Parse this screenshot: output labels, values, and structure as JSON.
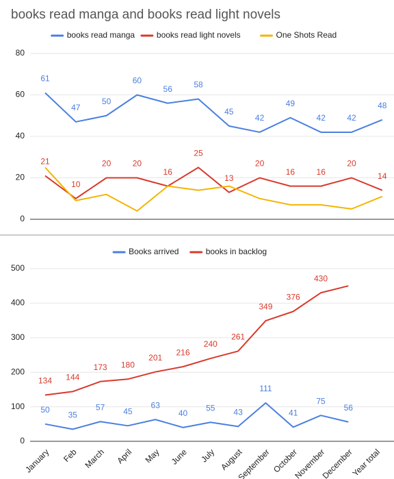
{
  "chart_data": [
    {
      "type": "line",
      "title": "books read manga and books read light novels",
      "categories": [
        null,
        null,
        null,
        null,
        null,
        null,
        null,
        null,
        null,
        null,
        null,
        null
      ],
      "series": [
        {
          "name": "books read manga",
          "color": "#4a7fe0",
          "data_labels": true,
          "values": [
            61,
            47,
            50,
            60,
            56,
            58,
            45,
            42,
            49,
            42,
            42,
            48
          ]
        },
        {
          "name": "books read light novels",
          "color": "#d8392b",
          "data_labels": true,
          "values": [
            21,
            10,
            20,
            20,
            16,
            25,
            13,
            20,
            16,
            16,
            20,
            14
          ]
        },
        {
          "name": "One Shots Read",
          "color": "#f4b400",
          "data_labels": false,
          "values": [
            25,
            9,
            12,
            4,
            16,
            14,
            16,
            10,
            7,
            7,
            5,
            11
          ]
        }
      ],
      "ylim": [
        0,
        80
      ],
      "yticks": [
        0,
        20,
        40,
        60,
        80
      ],
      "grid": true,
      "legend": "top"
    },
    {
      "type": "line",
      "categories": [
        "January",
        "Feb",
        "March",
        "April",
        "May",
        "June",
        "July",
        "August",
        "September",
        "October",
        "November",
        "December",
        "Year total"
      ],
      "series": [
        {
          "name": "Books arrived",
          "color": "#4a7fe0",
          "data_labels": true,
          "values": [
            50,
            35,
            57,
            45,
            63,
            40,
            55,
            43,
            111,
            41,
            75,
            56,
            null
          ]
        },
        {
          "name": "books in backlog",
          "color": "#d8392b",
          "data_labels": true,
          "values": [
            134,
            144,
            173,
            180,
            201,
            216,
            240,
            261,
            349,
            376,
            430,
            450,
            null
          ],
          "value_labels": [
            "134",
            "144",
            "173",
            "180",
            "201",
            "216",
            "240",
            "261",
            "349",
            "376",
            "430",
            null,
            null
          ]
        }
      ],
      "ylim": [
        0,
        500
      ],
      "yticks": [
        0,
        100,
        200,
        300,
        400,
        500
      ],
      "grid": true,
      "legend": "top"
    }
  ]
}
